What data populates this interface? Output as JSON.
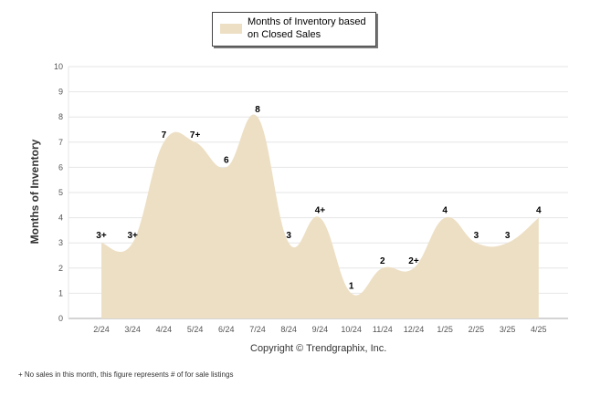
{
  "legend": {
    "label": "Months of Inventory based on Closed Sales",
    "swatch_color": "#eddfc4"
  },
  "copyright": "Copyright © Trendgraphix, Inc.",
  "footnote": "+ No sales in this month, this figure represents # of for sale listings",
  "chart_data": {
    "type": "area",
    "title": "",
    "xlabel": "",
    "ylabel": "Months of Inventory",
    "categories": [
      "2/24",
      "3/24",
      "4/24",
      "5/24",
      "6/24",
      "7/24",
      "8/24",
      "9/24",
      "10/24",
      "11/24",
      "12/24",
      "1/25",
      "2/25",
      "3/25",
      "4/25"
    ],
    "series": [
      {
        "name": "Months of Inventory based on Closed Sales",
        "values": [
          3,
          3,
          7,
          7,
          6,
          8,
          3,
          4,
          1,
          2,
          2,
          4,
          3,
          3,
          4
        ],
        "labels": [
          "3+",
          "3+",
          "7",
          "7+",
          "6",
          "8",
          "3",
          "4+",
          "1",
          "2",
          "2+",
          "4",
          "3",
          "3",
          "4"
        ],
        "color": "#eddfc4"
      }
    ],
    "ylim": [
      0,
      10
    ],
    "yticks": [
      0,
      1,
      2,
      3,
      4,
      5,
      6,
      7,
      8,
      9,
      10
    ],
    "grid": true,
    "legend_position": "top-center"
  }
}
